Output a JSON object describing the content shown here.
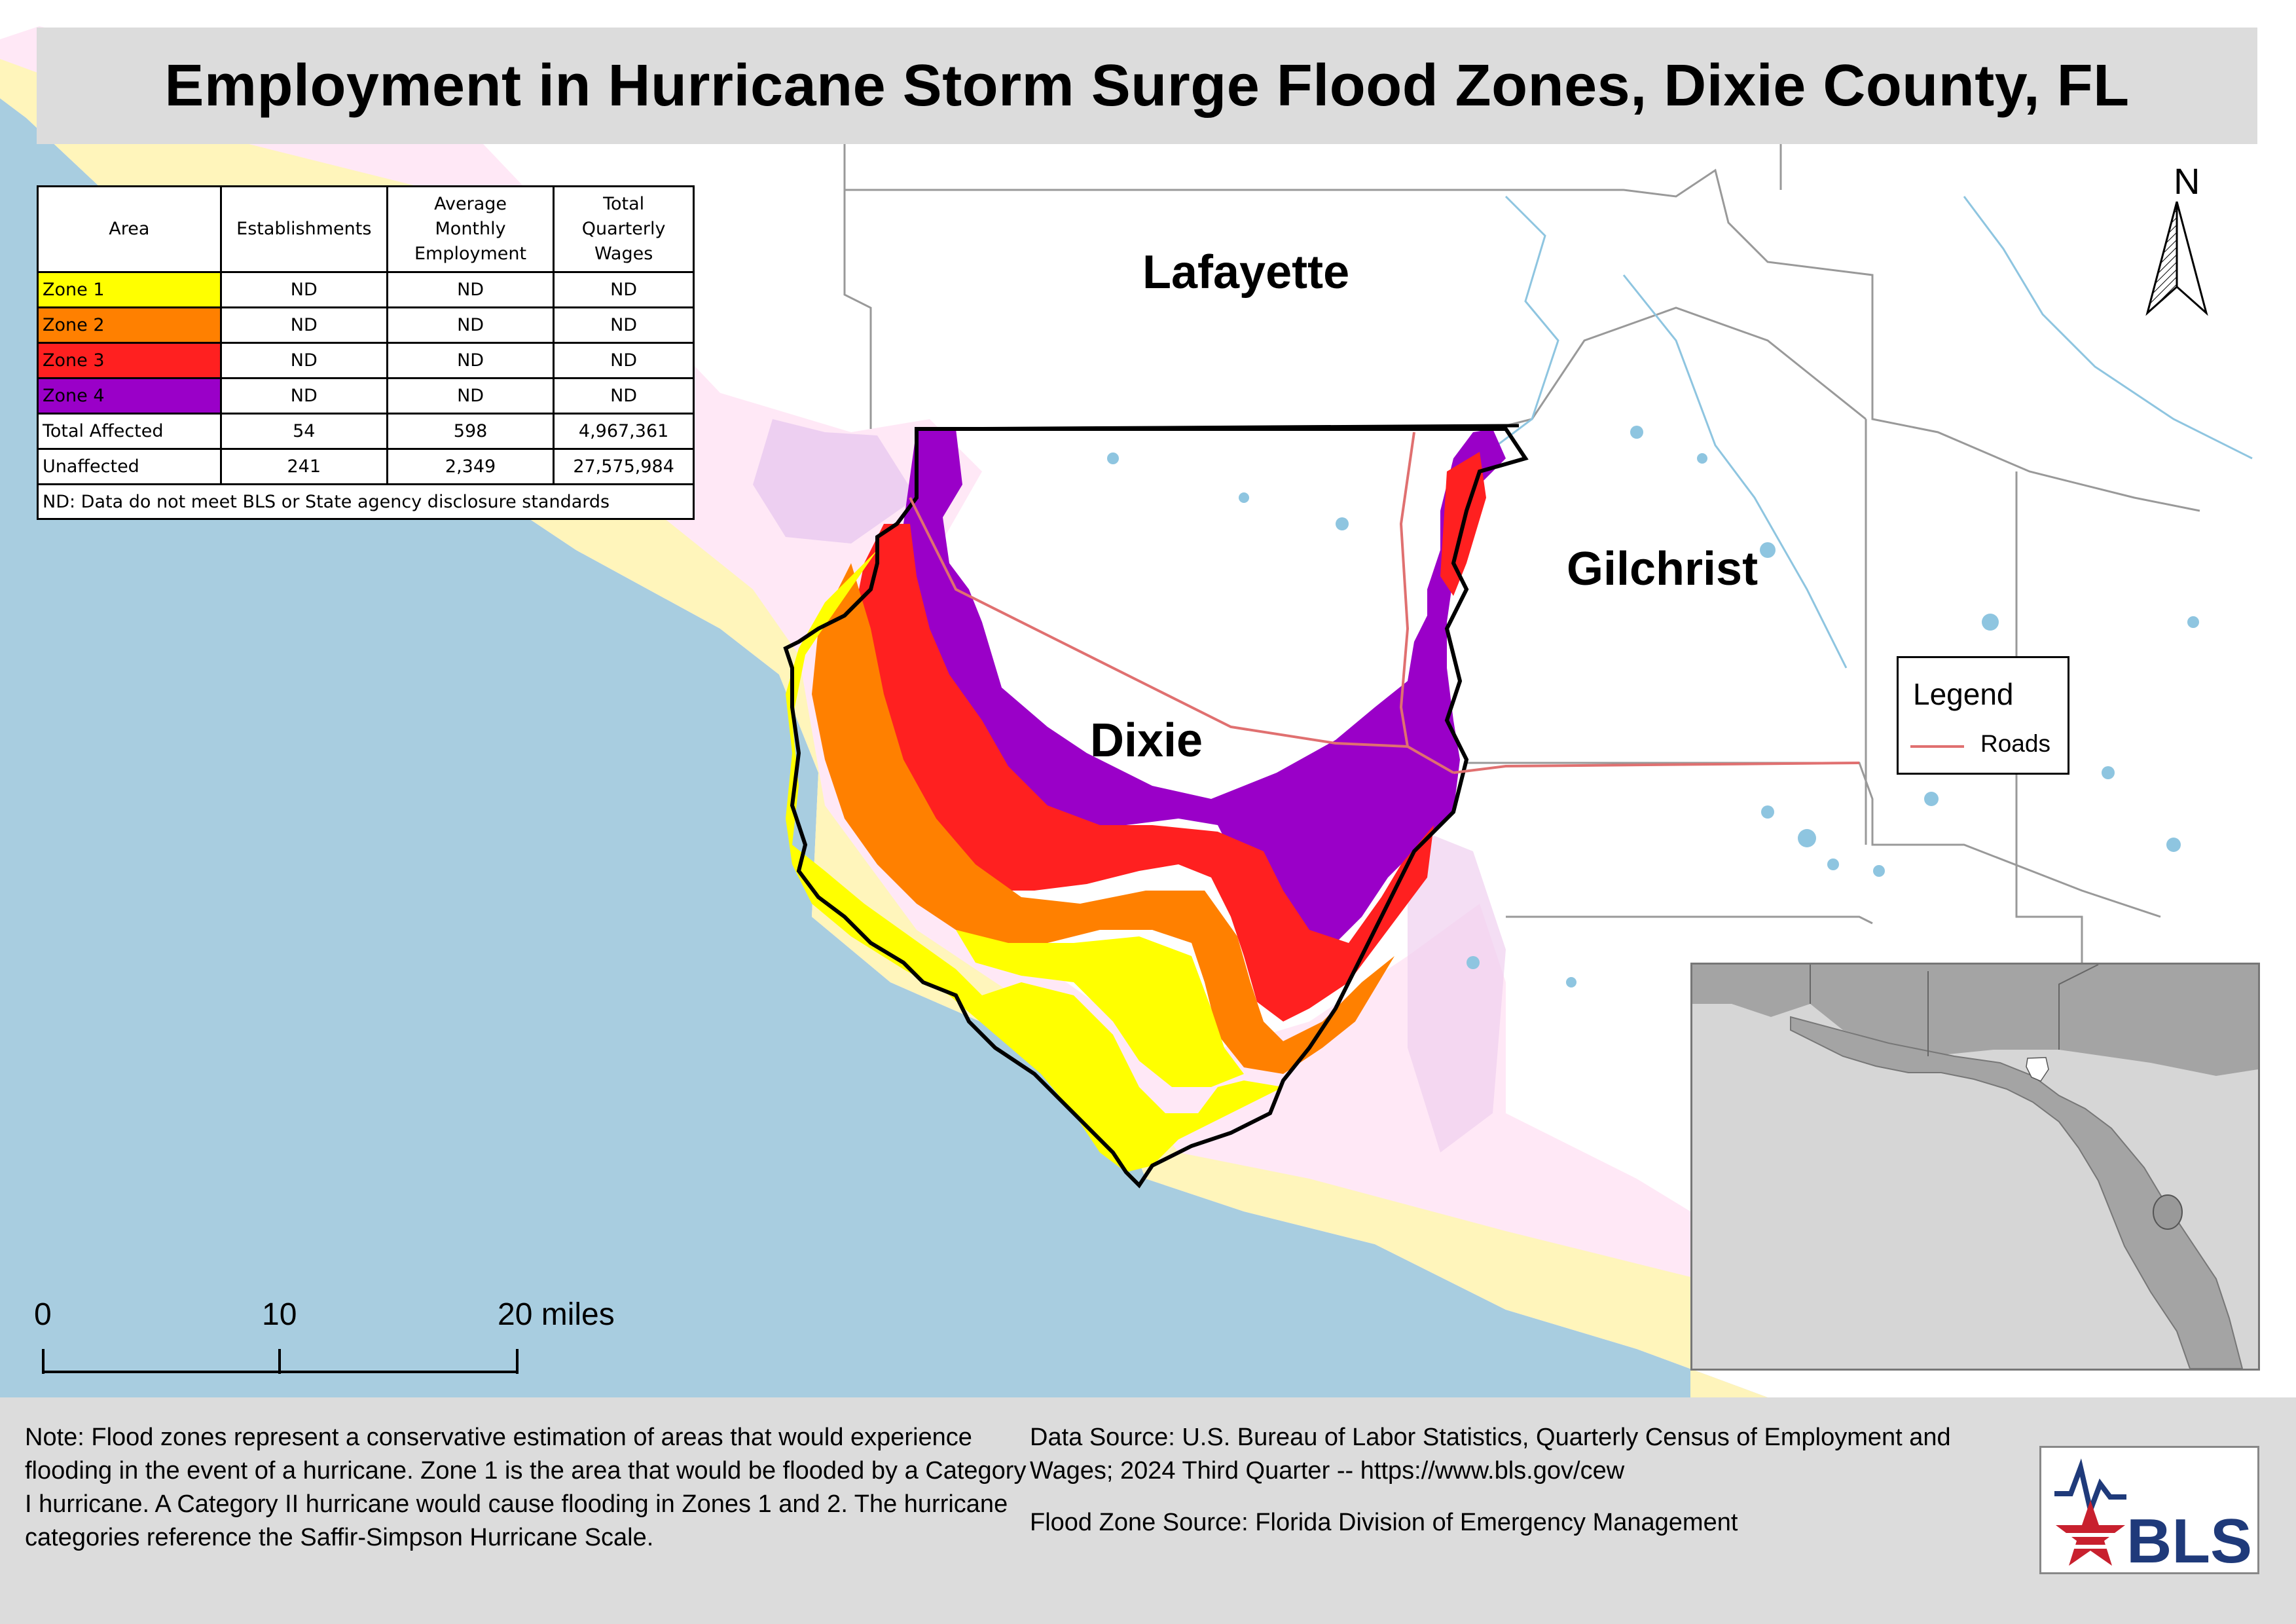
{
  "title": "Employment in Hurricane Storm Surge Flood Zones, Dixie County, FL",
  "table": {
    "headers": [
      "Area",
      "Establishments",
      "Average Monthly Employment",
      "Total Quarterly Wages"
    ],
    "rows": [
      {
        "area": "Zone 1",
        "color": "#ffff00",
        "establishments": "ND",
        "employment": "ND",
        "wages": "ND"
      },
      {
        "area": "Zone 2",
        "color": "#ff8000",
        "establishments": "ND",
        "employment": "ND",
        "wages": "ND"
      },
      {
        "area": "Zone 3",
        "color": "#ff2020",
        "establishments": "ND",
        "employment": "ND",
        "wages": "ND"
      },
      {
        "area": "Zone 4",
        "color": "#9a00c8",
        "establishments": "ND",
        "employment": "ND",
        "wages": "ND"
      },
      {
        "area": "Total Affected",
        "color": "#ffffff",
        "establishments": "54",
        "employment": "598",
        "wages": "4,967,361"
      },
      {
        "area": "Unaffected",
        "color": "#ffffff",
        "establishments": "241",
        "employment": "2,349",
        "wages": "27,575,984"
      }
    ],
    "note": "ND: Data do not meet BLS or State agency disclosure standards"
  },
  "places": {
    "lafayette": "Lafayette",
    "gilchrist": "Gilchrist",
    "dixie": "Dixie"
  },
  "legend": {
    "title": "Legend",
    "roads_label": "Roads",
    "roads_color": "#e07070"
  },
  "north_label": "N",
  "scale": {
    "labels": [
      "0",
      "10",
      "20 miles"
    ]
  },
  "footer": {
    "note": "Note: Flood zones represent a conservative estimation of areas that would experience flooding in the event of a hurricane. Zone 1 is the area that would be flooded by a Category I hurricane. A Category II hurricane would cause flooding in Zones 1 and 2. The hurricane categories reference the Saffir-Simpson Hurricane Scale.",
    "data_source": "Data Source: U.S. Bureau of Labor Statistics, Quarterly Census of Employment and Wages; 2024 Third Quarter -- https://www.bls.gov/cew",
    "flood_source": "Flood Zone Source: Florida Division of Emergency Management"
  },
  "logo_text": "BLS",
  "colors": {
    "water": "#a8cde0",
    "zone1": "#ffff00",
    "zone2": "#ff8000",
    "zone3": "#ff2020",
    "zone4": "#9a00c8"
  }
}
